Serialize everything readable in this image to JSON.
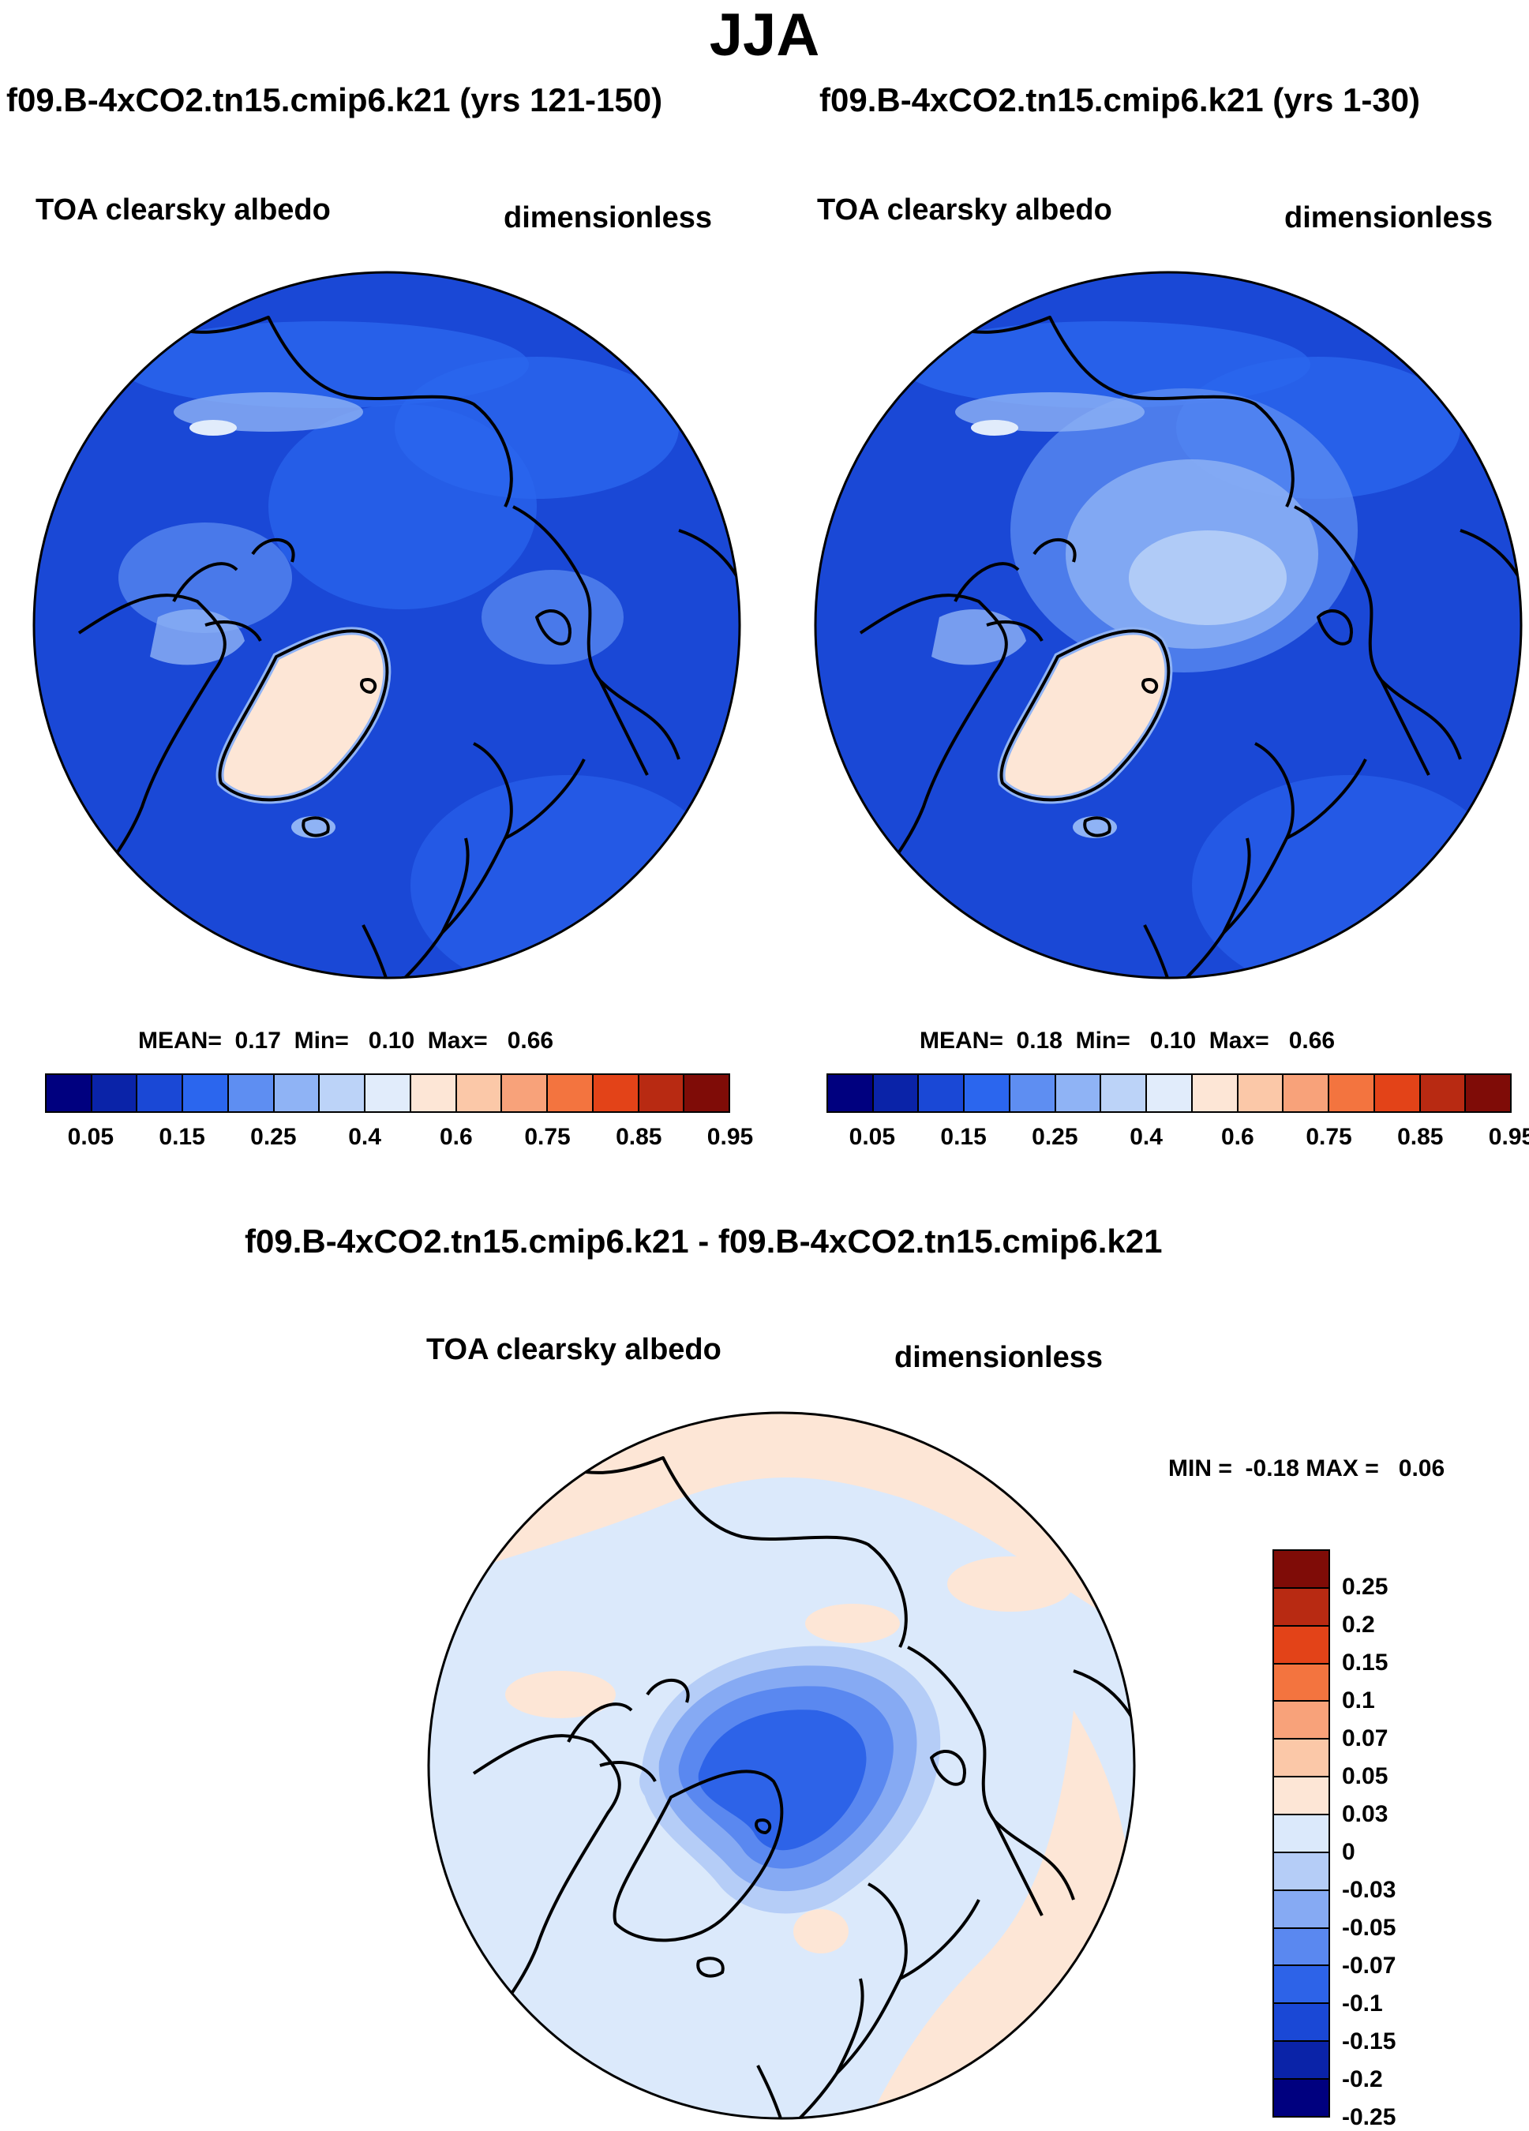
{
  "season": "JJA",
  "panels": {
    "left": {
      "case_title": "f09.B-4xCO2.tn15.cmip6.k21 (yrs 121-150)",
      "variable": "TOA clearsky albedo",
      "units": "dimensionless",
      "stats": "MEAN=  0.17  Min=   0.10  Max=   0.66"
    },
    "right": {
      "case_title": "f09.B-4xCO2.tn15.cmip6.k21 (yrs 1-30)",
      "variable": "TOA clearsky albedo",
      "units": "dimensionless",
      "stats": "MEAN=  0.18  Min=   0.10  Max=   0.66"
    },
    "diff": {
      "case_title": "f09.B-4xCO2.tn15.cmip6.k21 - f09.B-4xCO2.tn15.cmip6.k21",
      "variable": "TOA clearsky albedo",
      "units": "dimensionless",
      "stats": "MIN =  -0.18 MAX =   0.06"
    }
  },
  "colorbar_abs": {
    "colors": [
      "#00007f",
      "#0a23a8",
      "#1a48d6",
      "#2b66ee",
      "#5e8ef2",
      "#8fb3f5",
      "#bcd3f8",
      "#e1ecfb",
      "#fde6d6",
      "#fbc8a8",
      "#f8a27a",
      "#f3743f",
      "#e34318",
      "#b82a12",
      "#7f0c07"
    ],
    "labels": [
      "0.05",
      "0.15",
      "0.25",
      "0.4",
      "0.6",
      "0.75",
      "0.85",
      "0.95"
    ]
  },
  "colorbar_diff": {
    "colors": [
      "#7f0c07",
      "#b82a12",
      "#e34318",
      "#f3743f",
      "#f8a27a",
      "#fbc8a8",
      "#fde6d6",
      "#dbe9fb",
      "#b5cdf7",
      "#86aaf3",
      "#5a88f0",
      "#2d63e8",
      "#1a48d6",
      "#0a23a8",
      "#00007f"
    ],
    "labels": [
      "0.25",
      "0.2",
      "0.15",
      "0.1",
      "0.07",
      "0.05",
      "0.03",
      "0",
      "-0.03",
      "-0.05",
      "-0.07",
      "-0.1",
      "-0.15",
      "-0.2",
      "-0.25"
    ]
  },
  "chart_data": [
    {
      "type": "heatmap",
      "title": "f09.B-4xCO2.tn15.cmip6.k21 (yrs 121-150)",
      "variable": "TOA clearsky albedo",
      "units": "dimensionless",
      "projection": "north polar stereographic",
      "mean": 0.17,
      "min": 0.1,
      "max": 0.66,
      "levels": [
        0.05,
        0.1,
        0.15,
        0.2,
        0.25,
        0.3,
        0.4,
        0.5,
        0.6,
        0.7,
        0.75,
        0.8,
        0.85,
        0.9,
        0.95
      ]
    },
    {
      "type": "heatmap",
      "title": "f09.B-4xCO2.tn15.cmip6.k21 (yrs 1-30)",
      "variable": "TOA clearsky albedo",
      "units": "dimensionless",
      "projection": "north polar stereographic",
      "mean": 0.18,
      "min": 0.1,
      "max": 0.66,
      "levels": [
        0.05,
        0.1,
        0.15,
        0.2,
        0.25,
        0.3,
        0.4,
        0.5,
        0.6,
        0.7,
        0.75,
        0.8,
        0.85,
        0.9,
        0.95
      ]
    },
    {
      "type": "heatmap",
      "title": "f09.B-4xCO2.tn15.cmip6.k21 - f09.B-4xCO2.tn15.cmip6.k21",
      "variable": "TOA clearsky albedo",
      "units": "dimensionless",
      "projection": "north polar stereographic",
      "min": -0.18,
      "max": 0.06,
      "levels": [
        -0.25,
        -0.2,
        -0.15,
        -0.1,
        -0.07,
        -0.05,
        -0.03,
        0,
        0.03,
        0.05,
        0.07,
        0.1,
        0.15,
        0.2,
        0.25
      ]
    }
  ]
}
